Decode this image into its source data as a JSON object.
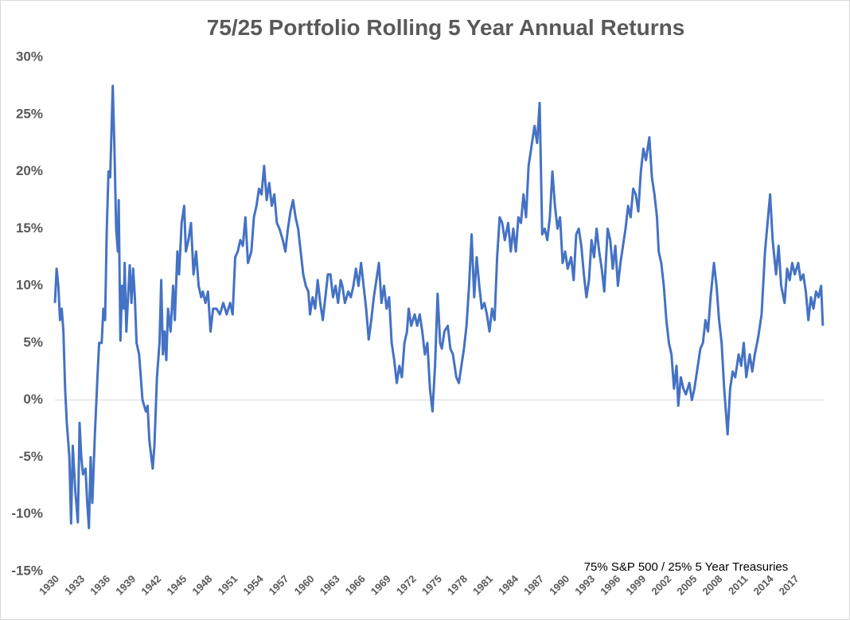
{
  "chart_data": {
    "type": "line",
    "title": "75/25 Portfolio Rolling 5 Year Annual Returns",
    "annotation": "75% S&P 500 / 25% 5 Year Treasuries",
    "color": "#4472c4",
    "xlim": [
      1930,
      2020.5
    ],
    "xticks": [
      1930,
      1933,
      1936,
      1939,
      1942,
      1945,
      1948,
      1951,
      1954,
      1957,
      1960,
      1963,
      1966,
      1969,
      1972,
      1975,
      1978,
      1981,
      1984,
      1987,
      1990,
      1993,
      1996,
      1999,
      2002,
      2005,
      2008,
      2011,
      2014,
      2017
    ],
    "ylim": [
      -15,
      30
    ],
    "yticks": [
      {
        "value": -15,
        "label": "-15%"
      },
      {
        "value": -10,
        "label": "-10%"
      },
      {
        "value": -5,
        "label": "-5%"
      },
      {
        "value": 0,
        "label": "0%"
      },
      {
        "value": 5,
        "label": "5%"
      },
      {
        "value": 10,
        "label": "10%"
      },
      {
        "value": 15,
        "label": "15%"
      },
      {
        "value": 20,
        "label": "20%"
      },
      {
        "value": 25,
        "label": "25%"
      },
      {
        "value": 30,
        "label": "30%"
      }
    ],
    "zero_line": true,
    "x": [
      1930.0,
      1930.2,
      1930.4,
      1930.6,
      1930.8,
      1931.0,
      1931.2,
      1931.4,
      1931.7,
      1931.9,
      1932.1,
      1932.4,
      1932.7,
      1932.9,
      1933.1,
      1933.3,
      1933.6,
      1933.8,
      1934.0,
      1934.2,
      1934.4,
      1934.7,
      1935.0,
      1935.2,
      1935.5,
      1935.7,
      1935.9,
      1936.1,
      1936.3,
      1936.5,
      1936.8,
      1937.0,
      1937.2,
      1937.4,
      1937.5,
      1937.7,
      1937.9,
      1938.1,
      1938.2,
      1938.4,
      1938.6,
      1938.8,
      1939.0,
      1939.2,
      1939.4,
      1939.6,
      1939.9,
      1940.3,
      1940.7,
      1940.9,
      1941.1,
      1941.5,
      1941.7,
      1942.0,
      1942.3,
      1942.5,
      1942.7,
      1942.9,
      1943.1,
      1943.3,
      1943.6,
      1943.9,
      1944.1,
      1944.4,
      1944.6,
      1944.9,
      1945.2,
      1945.4,
      1945.7,
      1946.0,
      1946.3,
      1946.6,
      1946.9,
      1947.2,
      1947.4,
      1947.7,
      1948.0,
      1948.3,
      1948.6,
      1949.0,
      1949.4,
      1949.8,
      1950.2,
      1950.6,
      1950.9,
      1951.2,
      1951.5,
      1951.8,
      1952.1,
      1952.4,
      1952.7,
      1953.1,
      1953.4,
      1953.7,
      1954.0,
      1954.3,
      1954.6,
      1954.9,
      1955.2,
      1955.5,
      1955.8,
      1956.1,
      1956.4,
      1956.8,
      1957.1,
      1957.4,
      1957.7,
      1958.0,
      1958.3,
      1958.6,
      1958.9,
      1959.2,
      1959.5,
      1959.8,
      1960.0,
      1960.3,
      1960.6,
      1960.9,
      1961.2,
      1961.5,
      1961.8,
      1962.1,
      1962.4,
      1962.7,
      1963.0,
      1963.3,
      1963.6,
      1963.8,
      1964.1,
      1964.5,
      1964.8,
      1965.1,
      1965.4,
      1965.7,
      1966.0,
      1966.3,
      1966.6,
      1966.9,
      1967.2,
      1967.5,
      1967.8,
      1968.1,
      1968.4,
      1968.7,
      1969.0,
      1969.3,
      1969.6,
      1969.9,
      1970.2,
      1970.5,
      1970.8,
      1971.1,
      1971.4,
      1971.6,
      1971.9,
      1972.3,
      1972.6,
      1972.9,
      1973.2,
      1973.5,
      1973.8,
      1974.1,
      1974.4,
      1974.7,
      1975.0,
      1975.3,
      1975.5,
      1975.8,
      1976.2,
      1976.5,
      1976.8,
      1977.2,
      1977.5,
      1977.8,
      1978.1,
      1978.4,
      1978.7,
      1979.0,
      1979.3,
      1979.6,
      1979.9,
      1980.2,
      1980.5,
      1980.8,
      1981.1,
      1981.4,
      1981.7,
      1982.0,
      1982.3,
      1982.6,
      1982.9,
      1983.3,
      1983.6,
      1983.9,
      1984.2,
      1984.5,
      1984.8,
      1985.1,
      1985.4,
      1985.7,
      1986.1,
      1986.4,
      1986.7,
      1987.0,
      1987.3,
      1987.6,
      1987.9,
      1988.2,
      1988.5,
      1988.8,
      1989.1,
      1989.4,
      1989.7,
      1990.0,
      1990.3,
      1990.7,
      1991.0,
      1991.3,
      1991.6,
      1991.9,
      1992.2,
      1992.5,
      1992.8,
      1993.1,
      1993.4,
      1993.7,
      1994.0,
      1994.3,
      1994.6,
      1995.0,
      1995.3,
      1995.6,
      1995.9,
      1996.2,
      1996.5,
      1996.8,
      1997.1,
      1997.4,
      1997.7,
      1998.0,
      1998.3,
      1998.6,
      1998.9,
      1999.2,
      1999.5,
      1999.9,
      2000.2,
      2000.5,
      2000.8,
      2001.0,
      2001.3,
      2001.6,
      2001.9,
      2002.2,
      2002.5,
      2002.8,
      2003.1,
      2003.3,
      2003.6,
      2003.9,
      2004.2,
      2004.6,
      2004.9,
      2005.2,
      2005.5,
      2005.9,
      2006.2,
      2006.5,
      2006.8,
      2007.1,
      2007.5,
      2007.8,
      2008.1,
      2008.4,
      2008.7,
      2009.1,
      2009.4,
      2009.7,
      2010.0,
      2010.4,
      2010.7,
      2011.0,
      2011.3,
      2011.7,
      2012.0,
      2012.3,
      2012.7,
      2013.1,
      2013.5,
      2014.1,
      2014.4,
      2014.8,
      2015.1,
      2015.4,
      2015.8,
      2016.1,
      2016.4,
      2016.7,
      2017.0,
      2017.4,
      2017.7,
      2018.0,
      2018.3,
      2018.6,
      2018.9,
      2019.2,
      2019.5,
      2019.8,
      2020.1,
      2020.3
    ],
    "values": [
      8.5,
      11.5,
      10,
      7,
      8,
      6,
      1,
      -2,
      -5,
      -10.8,
      -4,
      -8,
      -10.7,
      -2,
      -5,
      -6.5,
      -6,
      -9,
      -11.2,
      -5,
      -9,
      -3,
      2,
      5,
      5,
      8,
      7,
      15,
      20,
      19.5,
      27.5,
      22,
      15,
      13,
      17.5,
      5.2,
      10,
      8,
      12,
      6,
      9,
      11.8,
      8.5,
      11.5,
      9,
      5,
      4,
      0,
      -1,
      -0.5,
      -3.5,
      -6,
      -4,
      2,
      5,
      10.5,
      4,
      6,
      3.5,
      8,
      6,
      10,
      7,
      13,
      11,
      15.5,
      17,
      13,
      14,
      15.5,
      11,
      13,
      10,
      9,
      9.5,
      8.5,
      9.5,
      6,
      8,
      8,
      7.5,
      8.5,
      7.5,
      8.5,
      7.5,
      12.5,
      13,
      14,
      13.5,
      16,
      12,
      13,
      16,
      17,
      18.5,
      18,
      20.5,
      17.5,
      19,
      17,
      18,
      15.5,
      15,
      14,
      13,
      15,
      16.5,
      17.5,
      16,
      15,
      13,
      11,
      10,
      9.5,
      7.5,
      9,
      8,
      10.5,
      8.5,
      7,
      9,
      11,
      11,
      9,
      10,
      8.5,
      10.5,
      10,
      8.5,
      9.5,
      9,
      10,
      11.5,
      10,
      12,
      10,
      8,
      5.3,
      7,
      9,
      10.5,
      12,
      8.5,
      10,
      8,
      9,
      5,
      3.5,
      1.5,
      3,
      2,
      5,
      6,
      8,
      6.5,
      7.5,
      6.5,
      7.5,
      6,
      4,
      5,
      1,
      -1,
      3,
      9.3,
      5,
      4.5,
      6,
      6.5,
      4.5,
      4,
      2,
      1.5,
      3,
      4.5,
      6.5,
      10,
      14.5,
      9,
      12.5,
      10,
      8,
      8.5,
      7.5,
      6,
      8,
      7,
      12.5,
      16,
      15.5,
      14,
      15.5,
      13,
      15,
      13,
      16,
      15.5,
      18,
      16,
      20.5,
      22.5,
      24,
      22.5,
      26,
      14.5,
      15,
      14,
      16,
      20,
      17,
      15,
      16,
      12,
      13,
      11.5,
      12.5,
      10.5,
      14.5,
      15,
      13.5,
      11,
      9,
      10.5,
      14,
      12.5,
      15,
      13,
      11.5,
      9.5,
      15,
      14,
      11.5,
      13.5,
      10,
      12,
      13.5,
      15,
      17,
      16,
      18.5,
      18,
      16.5,
      20,
      22,
      21,
      23,
      19.5,
      18,
      16,
      13,
      12,
      10,
      7,
      5,
      4,
      1,
      3,
      -0.5,
      2,
      1,
      0.5,
      1.5,
      0,
      1,
      2.5,
      4.5,
      5,
      7,
      6,
      9,
      12,
      10,
      7,
      5,
      1,
      -3,
      1,
      2.5,
      2,
      4,
      3,
      5,
      2,
      4,
      2.5,
      4,
      5.5,
      7.5,
      13,
      18,
      14,
      11,
      13.5,
      10,
      8.5,
      11.5,
      10.5,
      12,
      11,
      12,
      10.5,
      11,
      9.5,
      7,
      9,
      8,
      9.5,
      9,
      10,
      6.5
    ]
  }
}
